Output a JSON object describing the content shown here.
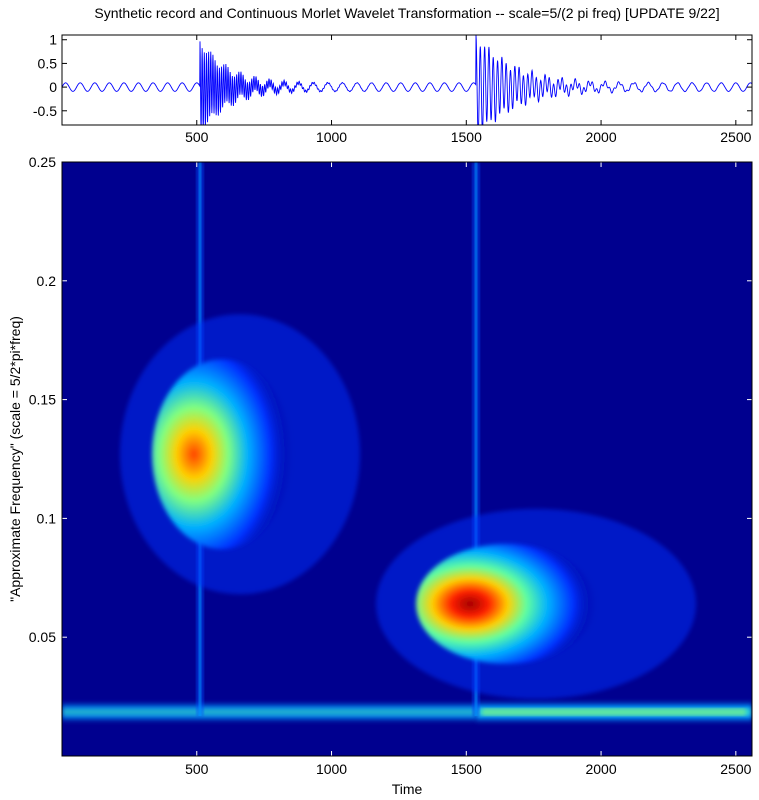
{
  "figure": {
    "title": "Synthetic record and Continuous Morlet Wavelet Transformation -- scale=5/(2 pi freq) [UPDATE 9/22]"
  },
  "chart_data": [
    {
      "type": "line",
      "title": "Synthetic record and Continuous Morlet Wavelet Transformation -- scale=5/(2 pi freq) [UPDATE 9/22]",
      "xlabel": "",
      "ylabel": "",
      "xlim": [
        0,
        2560
      ],
      "ylim": [
        -0.8,
        1.1
      ],
      "xticks": [
        500,
        1000,
        1500,
        2000,
        2500
      ],
      "yticks": [
        -0.5,
        0,
        0.5,
        1
      ],
      "ytick_labels": [
        "-0.5",
        "0",
        "0.5",
        "1"
      ],
      "line_color": "#0000ff",
      "series": [
        {
          "components": [
            {
              "kind": "sinusoid",
              "freq": 0.0185,
              "amplitude": 0.09,
              "t_start": 0,
              "t_end": 2560
            },
            {
              "kind": "burst",
              "t0": 512,
              "freq": 0.125,
              "amplitude": 0.95,
              "decay": 110
            },
            {
              "kind": "burst",
              "t0": 1536,
              "freq": 0.0625,
              "amplitude": 1.05,
              "decay": 150
            }
          ]
        }
      ]
    },
    {
      "type": "heatmap",
      "xlabel": "Time",
      "ylabel": "\"Approximate Frequency\" (scale = 5/2*pi*freq)",
      "xlim": [
        0,
        2560
      ],
      "ylim": [
        0,
        0.25
      ],
      "xticks": [
        500,
        1000,
        1500,
        2000,
        2500
      ],
      "yticks": [
        0.05,
        0.1,
        0.15,
        0.2,
        0.25
      ],
      "ytick_labels": [
        "0.05",
        "0.1",
        "0.15",
        "0.2",
        "0.25"
      ],
      "colormap": "jet",
      "features": [
        {
          "name": "burst at t=512",
          "t": 512,
          "freq_center": 0.127,
          "peak_value": 0.92
        },
        {
          "name": "burst at t=1536",
          "t": 1536,
          "freq_center": 0.064,
          "peak_value": 1.0
        },
        {
          "name": "continuous tone",
          "freq": 0.0185,
          "level_before": 0.38,
          "level_after": 0.52
        }
      ]
    }
  ]
}
